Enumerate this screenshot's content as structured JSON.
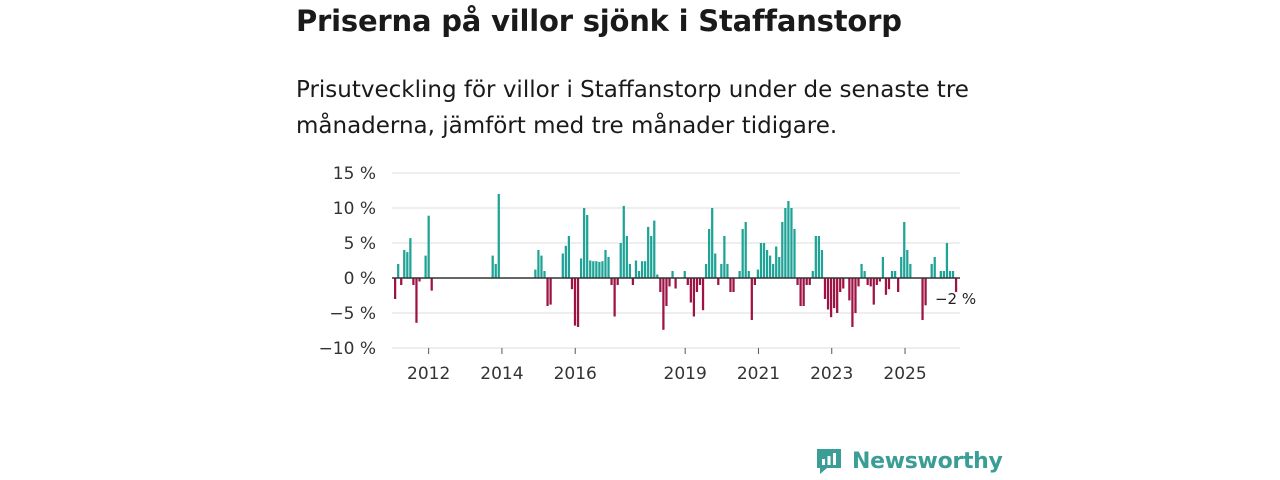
{
  "title": "Priserna på villor sjönk i Staffanstorp",
  "subtitle": "Prisutveckling för villor i Staffanstorp under de senaste tre månaderna, jämfört med tre månader tidigare.",
  "colors": {
    "positive": "#1fa396",
    "negative": "#9e1244",
    "grid": "#dddddd",
    "zero": "#333333",
    "brand": "#3a9e96"
  },
  "brand": {
    "name": "Newsworthy",
    "icon": "bar-chart-icon"
  },
  "chart_data": {
    "type": "bar",
    "title": "Priserna på villor sjönk i Staffanstorp",
    "xlabel": "",
    "ylabel": "",
    "ylim": [
      -10,
      15
    ],
    "y_ticks": [
      15,
      10,
      5,
      0,
      -5,
      -10
    ],
    "y_tick_labels": [
      "15 %",
      "10 %",
      "5 %",
      "0 %",
      "−5 %",
      "−10 %"
    ],
    "x_range": [
      2011.0,
      2026.5
    ],
    "x_ticks": [
      2012,
      2014,
      2016,
      2019,
      2021,
      2023,
      2025
    ],
    "x_tick_labels": [
      "2012",
      "2014",
      "2016",
      "2019",
      "2021",
      "2023",
      "2025"
    ],
    "annotation": {
      "label": "−2 %",
      "value": -2
    },
    "values": [
      -3.0,
      2.0,
      -1.0,
      4.0,
      3.7,
      5.7,
      -1.0,
      -6.4,
      -0.5,
      0,
      3.2,
      8.9,
      -1.8,
      0,
      0,
      0,
      0,
      0,
      0,
      0,
      0,
      0,
      0,
      0,
      0,
      0,
      0,
      0,
      0,
      0,
      0,
      0,
      3.2,
      2.0,
      12.0,
      0,
      0,
      0,
      0,
      0,
      0,
      0,
      0,
      0,
      0,
      0,
      1.2,
      4.0,
      3.2,
      1.0,
      -4.0,
      -3.8,
      0,
      0,
      0,
      3.5,
      4.6,
      6.0,
      -1.6,
      -6.8,
      -7.0,
      2.8,
      10.0,
      9.0,
      2.5,
      2.4,
      2.4,
      2.3,
      2.4,
      4.0,
      3.0,
      -1.0,
      -5.5,
      -1.0,
      5.0,
      10.3,
      6.0,
      2.0,
      -1.0,
      2.5,
      1.0,
      2.4,
      2.4,
      7.3,
      6.0,
      8.2,
      0.5,
      -2.0,
      -7.4,
      -4.0,
      -1.2,
      1.0,
      -1.5,
      0,
      0,
      1.0,
      -1.0,
      -3.5,
      -5.5,
      -2.0,
      -1.0,
      -4.6,
      2.0,
      7.0,
      10.0,
      3.5,
      -1.0,
      2.0,
      6.0,
      2.0,
      -2.0,
      -2.0,
      0,
      1.0,
      7.0,
      8.0,
      1.0,
      -6.0,
      -1.0,
      1.2,
      5.0,
      5.0,
      4.0,
      3.2,
      2.0,
      4.5,
      3.0,
      8.0,
      10.0,
      11.0,
      10.0,
      7.0,
      -1.0,
      -4.0,
      -4.0,
      -1.0,
      -1.0,
      1.0,
      6.0,
      6.0,
      4.0,
      -3.0,
      -4.5,
      -5.6,
      -4.3,
      -5.0,
      -2.0,
      -1.5,
      0,
      -3.2,
      -7.0,
      -5.0,
      -1.2,
      2.0,
      1.0,
      -1.0,
      -1.2,
      -3.8,
      -1.0,
      -0.5,
      3.0,
      -2.4,
      -1.6,
      1.0,
      1.0,
      -2.0,
      3.0,
      8.0,
      4.0,
      2.0,
      0,
      0,
      0,
      -6.0,
      -3.9,
      0,
      2.0,
      3.0,
      0,
      1.0,
      1.0,
      5.0,
      1.0,
      1.0,
      -2.0
    ]
  }
}
